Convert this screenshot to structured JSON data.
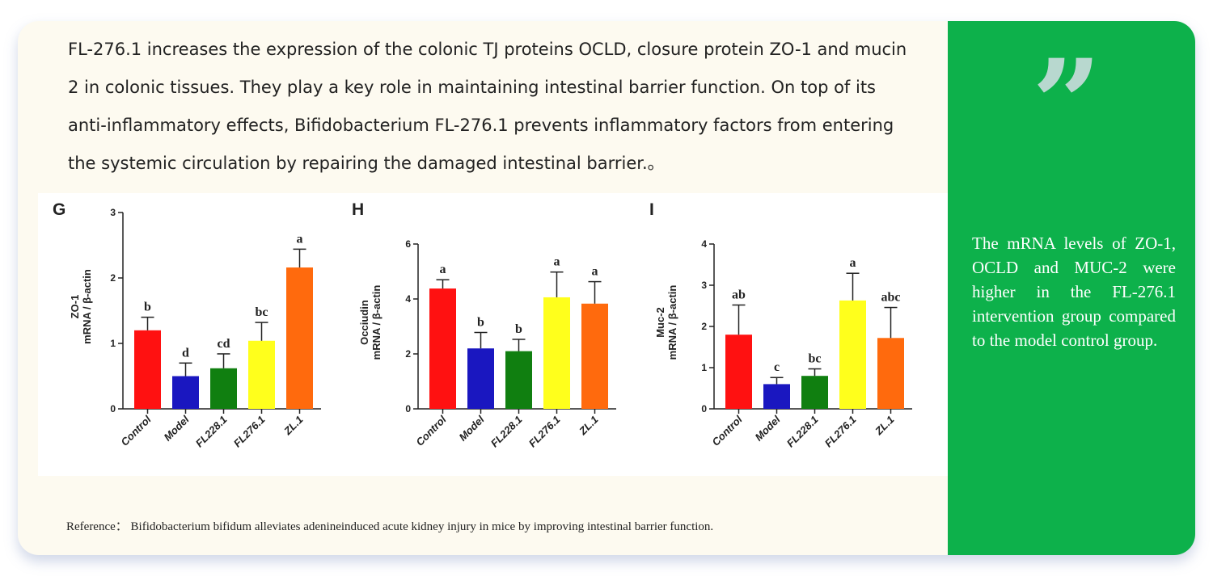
{
  "intro_text": "FL-276.1 increases the expression of the colonic TJ proteins OCLD, closure protein ZO-1 and mucin 2 in colonic tissues. They play a key role in maintaining intestinal barrier function. On top of its anti-inflammatory effects, Bifidobacterium FL-276.1 prevents inflammatory factors from entering the systemic circulation by repairing the damaged intestinal barrier.。",
  "reference": "Reference：  Bifidobacterium bifidum alleviates adenineinduced acute kidney injury in mice by improving intestinal barrier function.",
  "sidebar": {
    "quote_glyph": "”",
    "quote_text": "The mRNA levels of ZO-1, OCLD and MUC-2 were higher in the FL-276.1 intervention group compared to the model control group.",
    "background_color": "#0db14b",
    "quote_color": "#b8d8cf"
  },
  "colors": {
    "Control": "#ff1111",
    "Model": "#1a17c0",
    "FL228.1": "#107f10",
    "FL276.1": "#ffff1c",
    "ZL.1": "#ff6a0d"
  },
  "chart_data": [
    {
      "type": "bar",
      "panel": "G",
      "ylabel_top": "ZO-1",
      "ylabel_bottom": "mRNA / β-actin",
      "ylim": [
        0,
        3
      ],
      "yticks": [
        "0",
        "1",
        "2",
        "3"
      ],
      "categories": [
        "Control",
        "Model",
        "FL228.1",
        "FL276.1",
        "ZL.1"
      ],
      "values": [
        1.2,
        0.5,
        0.62,
        1.04,
        2.16
      ],
      "errors": [
        0.2,
        0.2,
        0.22,
        0.28,
        0.28
      ],
      "significance": [
        "b",
        "d",
        "cd",
        "bc",
        "a"
      ]
    },
    {
      "type": "bar",
      "panel": "H",
      "ylabel_top": "Occiudin",
      "ylabel_bottom": "mRNA / β-actin",
      "ylim": [
        0,
        6
      ],
      "yticks": [
        "0",
        "2",
        "4",
        "6"
      ],
      "categories": [
        "Control",
        "Model",
        "FL228.1",
        "FL276.1",
        "ZL.1"
      ],
      "values": [
        4.38,
        2.2,
        2.1,
        4.06,
        3.83
      ],
      "errors": [
        0.32,
        0.58,
        0.43,
        0.92,
        0.8
      ],
      "significance": [
        "a",
        "b",
        "b",
        "a",
        "a"
      ]
    },
    {
      "type": "bar",
      "panel": "I",
      "ylabel_top": "Muc-2",
      "ylabel_bottom": "mRNA / β-actin",
      "ylim": [
        0,
        4
      ],
      "yticks": [
        "0",
        "1",
        "2",
        "3",
        "4"
      ],
      "categories": [
        "Control",
        "Model",
        "FL228.1",
        "FL276.1",
        "ZL.1"
      ],
      "values": [
        1.8,
        0.6,
        0.8,
        2.63,
        1.72
      ],
      "errors": [
        0.72,
        0.16,
        0.17,
        0.66,
        0.74
      ],
      "significance": [
        "ab",
        "c",
        "bc",
        "a",
        "abc"
      ]
    }
  ]
}
